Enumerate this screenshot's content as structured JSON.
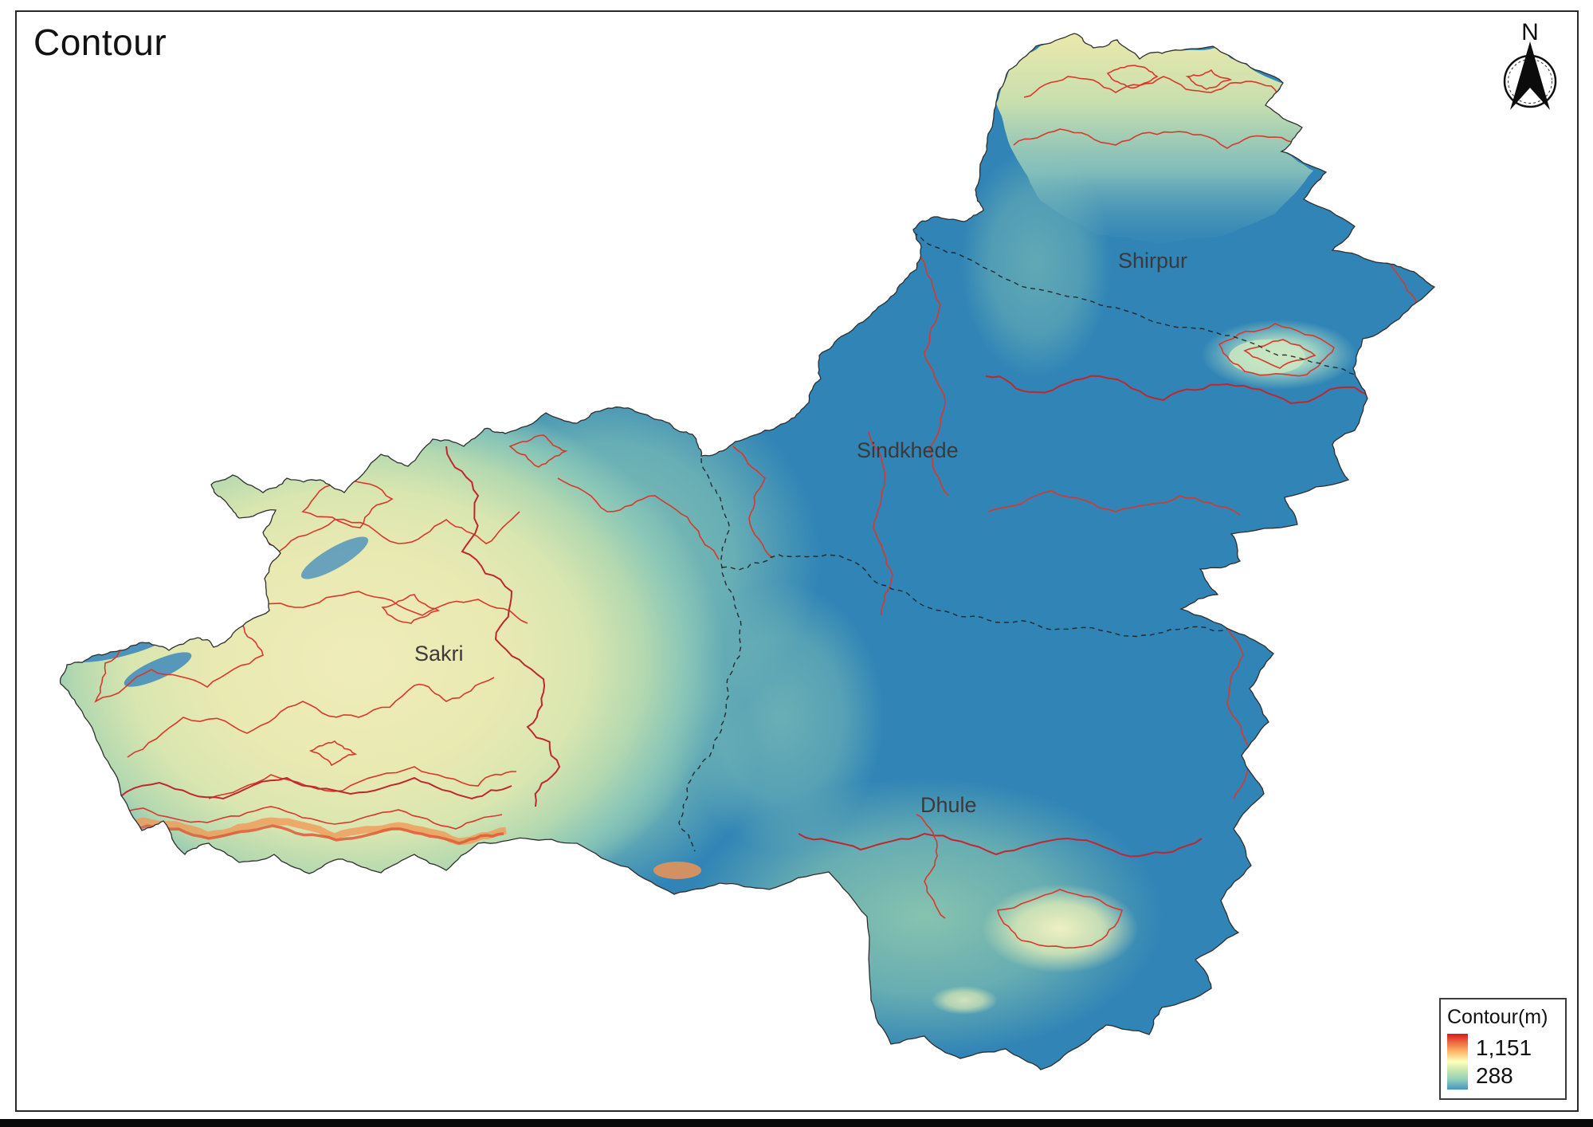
{
  "page": {
    "title": "Contour"
  },
  "north_arrow": {
    "label": "N"
  },
  "map": {
    "region_labels": [
      {
        "text": "Shirpur"
      },
      {
        "text": "Sindkhede"
      },
      {
        "text": "Sakri"
      },
      {
        "text": "Dhule"
      }
    ],
    "colors": {
      "low_elevation_blue": "#3084b6",
      "mid_elevation_teal": "#8fc7bd",
      "high_elevation_cream": "#e9e9b2",
      "ridge_orange": "#f09a57",
      "contour_line_red": "#da372c",
      "boundary_line_black": "#1e1e1e"
    }
  },
  "legend": {
    "title": "Contour(m)",
    "max_label": "1,151",
    "min_label": "288",
    "ramp": [
      "#d7191c",
      "#ec6c43",
      "#fdb768",
      "#feffbe",
      "#c7e6ad",
      "#92cfba",
      "#4197c6"
    ]
  }
}
